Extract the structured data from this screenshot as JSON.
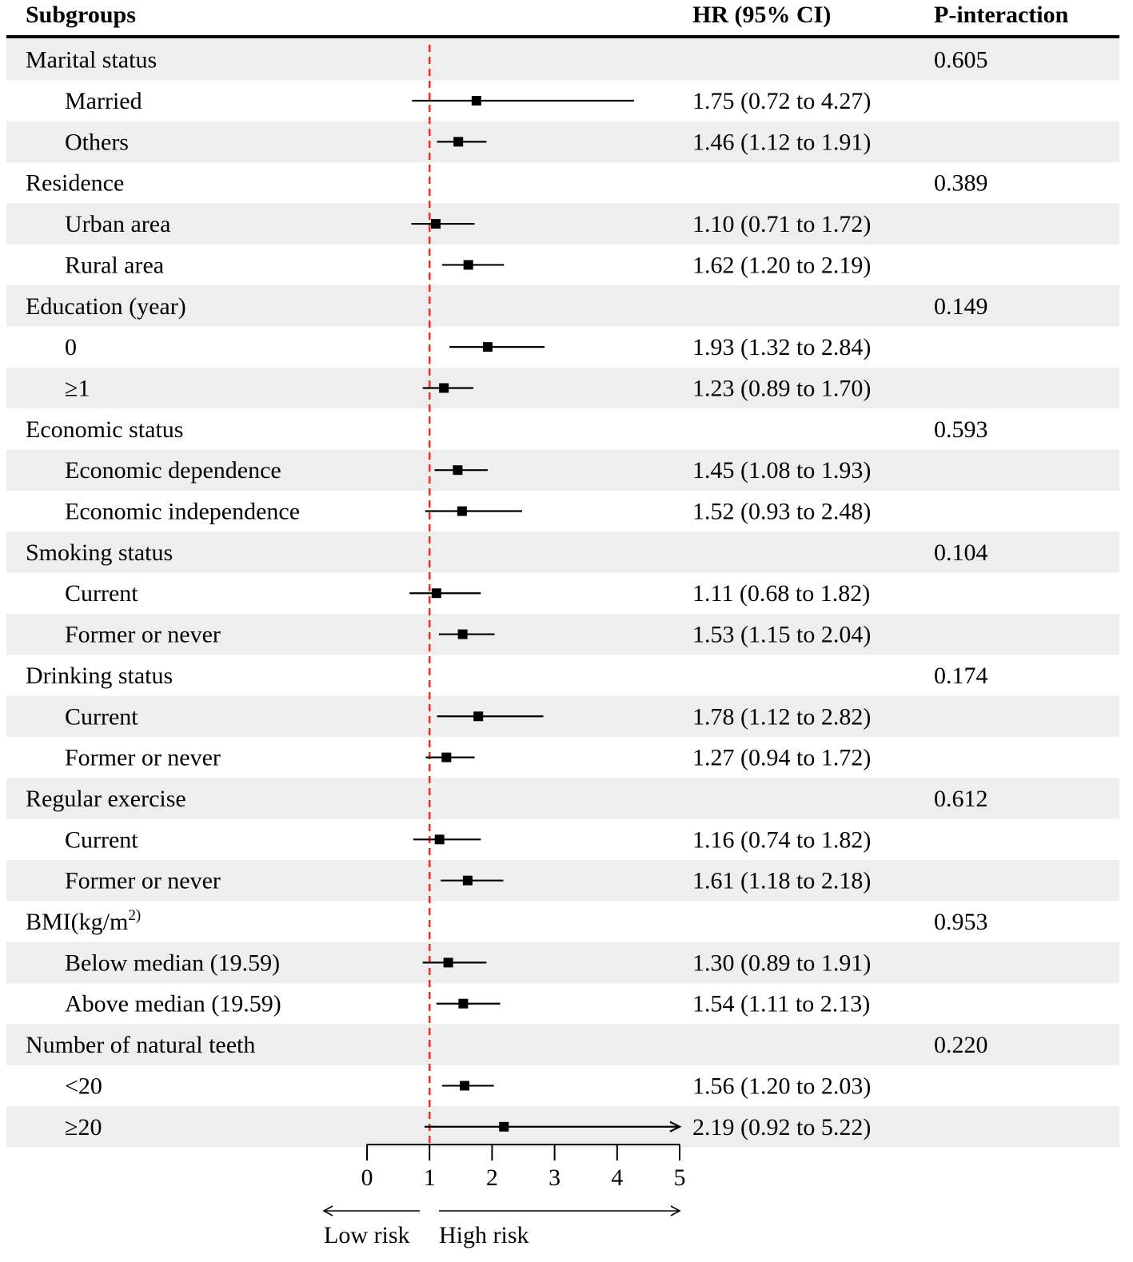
{
  "headers": {
    "subgroups": "Subgroups",
    "hr": "HR (95% CI)",
    "p": "P-interaction"
  },
  "colors": {
    "stripe": "#eeeeee",
    "reference_line": "#e0302a",
    "marker": "#000000"
  },
  "chart_data": {
    "type": "forest",
    "reference_value": 1,
    "xlim": [
      0,
      5
    ],
    "xticks": [
      0,
      1,
      2,
      3,
      4,
      5
    ],
    "x_left_label": "Low risk",
    "x_right_label": "High risk",
    "rows": [
      {
        "kind": "group",
        "label": "Marital status",
        "p": "0.605"
      },
      {
        "kind": "item",
        "label": "Married",
        "hr": 1.75,
        "lo": 0.72,
        "hi": 4.27,
        "text": "1.75 (0.72 to 4.27)"
      },
      {
        "kind": "item",
        "label": "Others",
        "hr": 1.46,
        "lo": 1.12,
        "hi": 1.91,
        "text": "1.46 (1.12 to 1.91)"
      },
      {
        "kind": "group",
        "label": "Residence",
        "p": "0.389"
      },
      {
        "kind": "item",
        "label": "Urban area",
        "hr": 1.1,
        "lo": 0.71,
        "hi": 1.72,
        "text": "1.10 (0.71 to 1.72)"
      },
      {
        "kind": "item",
        "label": "Rural area",
        "hr": 1.62,
        "lo": 1.2,
        "hi": 2.19,
        "text": "1.62 (1.20 to 2.19)"
      },
      {
        "kind": "group",
        "label": "Education (year)",
        "p": "0.149"
      },
      {
        "kind": "item",
        "label": "0",
        "hr": 1.93,
        "lo": 1.32,
        "hi": 2.84,
        "text": "1.93 (1.32 to 2.84)"
      },
      {
        "kind": "item",
        "label": "≥1",
        "hr": 1.23,
        "lo": 0.89,
        "hi": 1.7,
        "text": "1.23 (0.89 to 1.70)"
      },
      {
        "kind": "group",
        "label": "Economic status",
        "p": "0.593"
      },
      {
        "kind": "item",
        "label": "Economic dependence",
        "hr": 1.45,
        "lo": 1.08,
        "hi": 1.93,
        "text": "1.45 (1.08 to 1.93)"
      },
      {
        "kind": "item",
        "label": "Economic independence",
        "hr": 1.52,
        "lo": 0.93,
        "hi": 2.48,
        "text": "1.52 (0.93 to 2.48)"
      },
      {
        "kind": "group",
        "label": "Smoking status",
        "p": "0.104"
      },
      {
        "kind": "item",
        "label": "Current",
        "hr": 1.11,
        "lo": 0.68,
        "hi": 1.82,
        "text": "1.11 (0.68 to 1.82)"
      },
      {
        "kind": "item",
        "label": "Former or never",
        "hr": 1.53,
        "lo": 1.15,
        "hi": 2.04,
        "text": "1.53 (1.15 to 2.04)"
      },
      {
        "kind": "group",
        "label": "Drinking status",
        "p": "0.174"
      },
      {
        "kind": "item",
        "label": "Current",
        "hr": 1.78,
        "lo": 1.12,
        "hi": 2.82,
        "text": "1.78 (1.12 to 2.82)"
      },
      {
        "kind": "item",
        "label": "Former or never",
        "hr": 1.27,
        "lo": 0.94,
        "hi": 1.72,
        "text": "1.27 (0.94 to 1.72)"
      },
      {
        "kind": "group",
        "label": "Regular exercise",
        "p": "0.612"
      },
      {
        "kind": "item",
        "label": "Current",
        "hr": 1.16,
        "lo": 0.74,
        "hi": 1.82,
        "text": "1.16 (0.74 to 1.82)"
      },
      {
        "kind": "item",
        "label": "Former or never",
        "hr": 1.61,
        "lo": 1.18,
        "hi": 2.18,
        "text": "1.61 (1.18 to 2.18)"
      },
      {
        "kind": "group",
        "label": "BMI(kg/m",
        "label_sup": "2)",
        "p": "0.953"
      },
      {
        "kind": "item",
        "label": "Below median (19.59)",
        "hr": 1.3,
        "lo": 0.89,
        "hi": 1.91,
        "text": "1.30 (0.89 to 1.91)"
      },
      {
        "kind": "item",
        "label": "Above median (19.59)",
        "hr": 1.54,
        "lo": 1.11,
        "hi": 2.13,
        "text": "1.54 (1.11 to 2.13)"
      },
      {
        "kind": "group",
        "label": "Number of natural teeth",
        "p": "0.220"
      },
      {
        "kind": "item",
        "label": "<20",
        "hr": 1.56,
        "lo": 1.2,
        "hi": 2.03,
        "text": "1.56 (1.20 to 2.03)"
      },
      {
        "kind": "item",
        "label": "≥20",
        "hr": 2.19,
        "lo": 0.92,
        "hi": 5.22,
        "text": "2.19 (0.92 to 5.22)"
      }
    ]
  }
}
